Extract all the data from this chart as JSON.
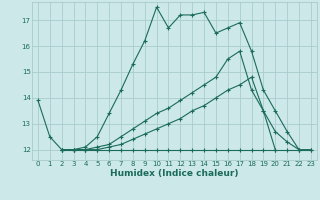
{
  "title": "",
  "xlabel": "Humidex (Indice chaleur)",
  "ylabel": "",
  "xlim": [
    -0.5,
    23.5
  ],
  "ylim": [
    11.6,
    17.7
  ],
  "xticks": [
    0,
    1,
    2,
    3,
    4,
    5,
    6,
    7,
    8,
    9,
    10,
    11,
    12,
    13,
    14,
    15,
    16,
    17,
    18,
    19,
    20,
    21,
    22,
    23
  ],
  "yticks": [
    12,
    13,
    14,
    15,
    16,
    17
  ],
  "bg_color": "#cce8e8",
  "line_color": "#1a6b5a",
  "grid_color": "#aacccc",
  "lines": [
    {
      "x": [
        0,
        1,
        2,
        3,
        4,
        5,
        6,
        7,
        8,
        9,
        10,
        11,
        12,
        13,
        14,
        15,
        16,
        17,
        18,
        19,
        20,
        21,
        22
      ],
      "y": [
        13.9,
        12.5,
        12.0,
        12.0,
        12.1,
        12.5,
        13.4,
        14.3,
        15.3,
        16.2,
        17.5,
        16.7,
        17.2,
        17.2,
        17.3,
        16.5,
        16.7,
        16.9,
        15.8,
        14.3,
        13.5,
        12.7,
        12.0
      ]
    },
    {
      "x": [
        2,
        3,
        4,
        5,
        6,
        7,
        8,
        9,
        10,
        11,
        12,
        13,
        14,
        15,
        16,
        17,
        18,
        19,
        20
      ],
      "y": [
        12.0,
        12.0,
        12.0,
        12.1,
        12.2,
        12.5,
        12.8,
        13.1,
        13.4,
        13.6,
        13.9,
        14.2,
        14.5,
        14.8,
        15.5,
        15.8,
        14.3,
        13.5,
        12.0
      ]
    },
    {
      "x": [
        2,
        3,
        4,
        5,
        6,
        7,
        8,
        9,
        10,
        11,
        12,
        13,
        14,
        15,
        16,
        17,
        18,
        19,
        20,
        21,
        22,
        23
      ],
      "y": [
        12.0,
        12.0,
        12.0,
        12.0,
        12.1,
        12.2,
        12.4,
        12.6,
        12.8,
        13.0,
        13.2,
        13.5,
        13.7,
        14.0,
        14.3,
        14.5,
        14.8,
        13.5,
        12.7,
        12.3,
        12.0,
        12.0
      ]
    },
    {
      "x": [
        2,
        3,
        4,
        5,
        6,
        7,
        8,
        9,
        10,
        11,
        12,
        13,
        14,
        15,
        16,
        17,
        18,
        19,
        20,
        21,
        22,
        23
      ],
      "y": [
        12.0,
        12.0,
        12.0,
        12.0,
        12.0,
        12.0,
        12.0,
        12.0,
        12.0,
        12.0,
        12.0,
        12.0,
        12.0,
        12.0,
        12.0,
        12.0,
        12.0,
        12.0,
        12.0,
        12.0,
        12.0,
        12.0
      ]
    }
  ]
}
